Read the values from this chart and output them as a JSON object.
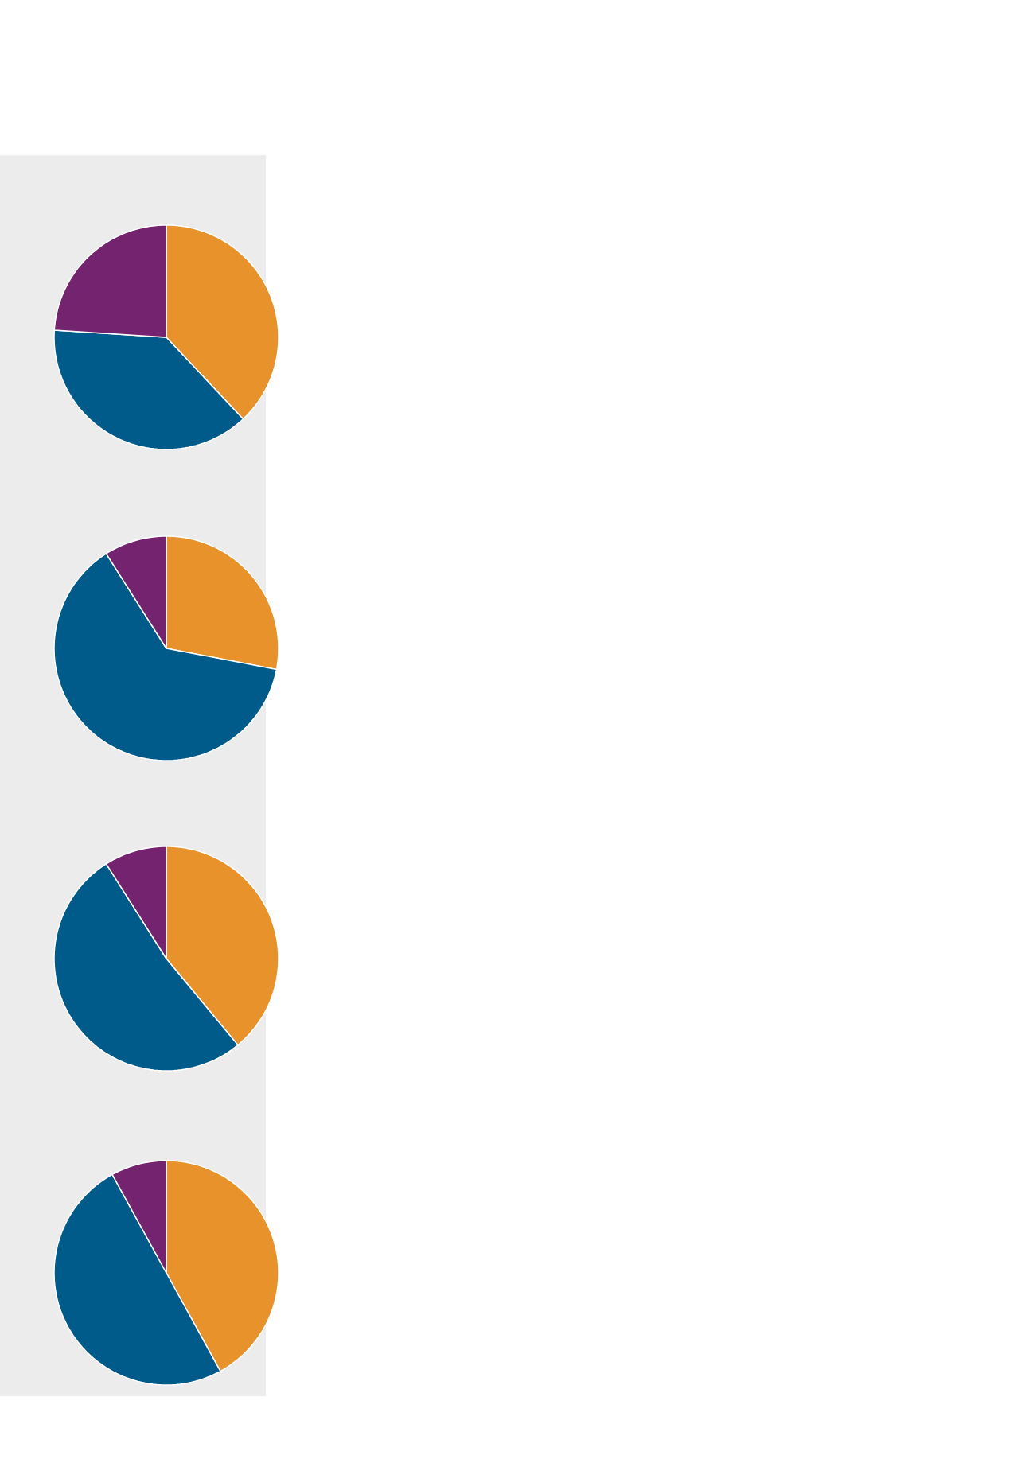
{
  "chart_data": [
    {
      "type": "pie",
      "categories": [
        null,
        null,
        null
      ],
      "values": [
        38,
        38,
        24
      ],
      "colors": [
        "#e8922c",
        "#005b8a",
        "#74246e"
      ]
    },
    {
      "type": "pie",
      "categories": [
        null,
        null,
        null
      ],
      "values": [
        28,
        63,
        9
      ],
      "colors": [
        "#e8922c",
        "#005b8a",
        "#74246e"
      ]
    },
    {
      "type": "pie",
      "categories": [
        null,
        null,
        null
      ],
      "values": [
        39,
        52,
        9
      ],
      "colors": [
        "#e8922c",
        "#005b8a",
        "#74246e"
      ]
    },
    {
      "type": "pie",
      "categories": [
        null,
        null,
        null
      ],
      "values": [
        42,
        50,
        8
      ],
      "colors": [
        "#e8922c",
        "#005b8a",
        "#74246e"
      ]
    }
  ]
}
